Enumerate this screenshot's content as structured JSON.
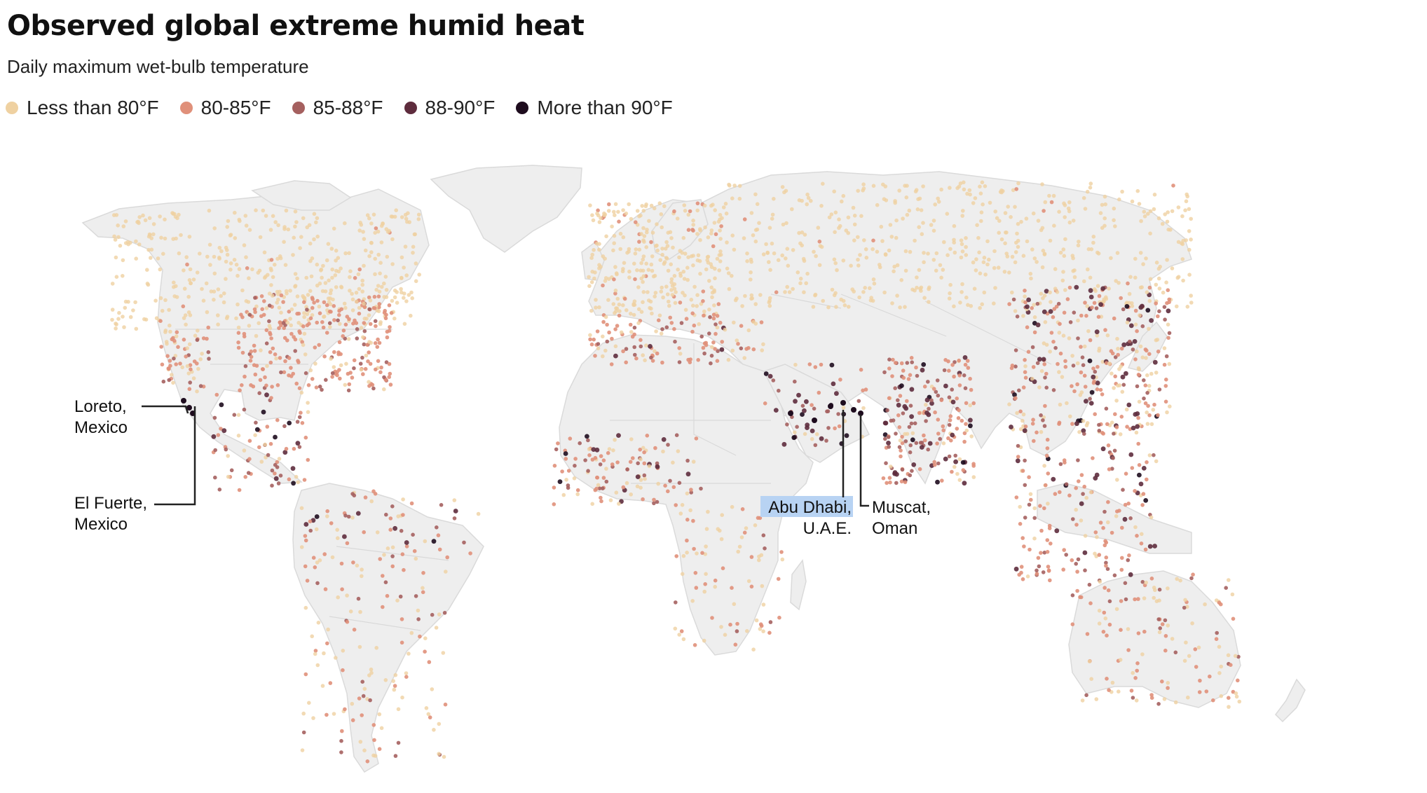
{
  "title": "Observed global extreme humid heat",
  "subtitle": "Daily maximum wet-bulb temperature",
  "legend": [
    {
      "label": "Less than 80°F",
      "color": "#efd1a1"
    },
    {
      "label": "80-85°F",
      "color": "#e0907a"
    },
    {
      "label": "85-88°F",
      "color": "#a5605f"
    },
    {
      "label": "88-90°F",
      "color": "#5e2c3d"
    },
    {
      "label": "More than 90°F",
      "color": "#1e0c1e"
    }
  ],
  "map": {
    "land_color": "#eeeeee",
    "border_color": "#d9d9d9"
  },
  "annotations": {
    "loreto": {
      "line1": "Loreto,",
      "line2": "Mexico"
    },
    "el_fuerte": {
      "line1": "El Fuerte,",
      "line2": "Mexico"
    },
    "abu_dhabi": {
      "line1": "Abu Dhabi,",
      "line2": "U.A.E."
    },
    "muscat": {
      "line1": "Muscat,",
      "line2": "Oman"
    }
  }
}
